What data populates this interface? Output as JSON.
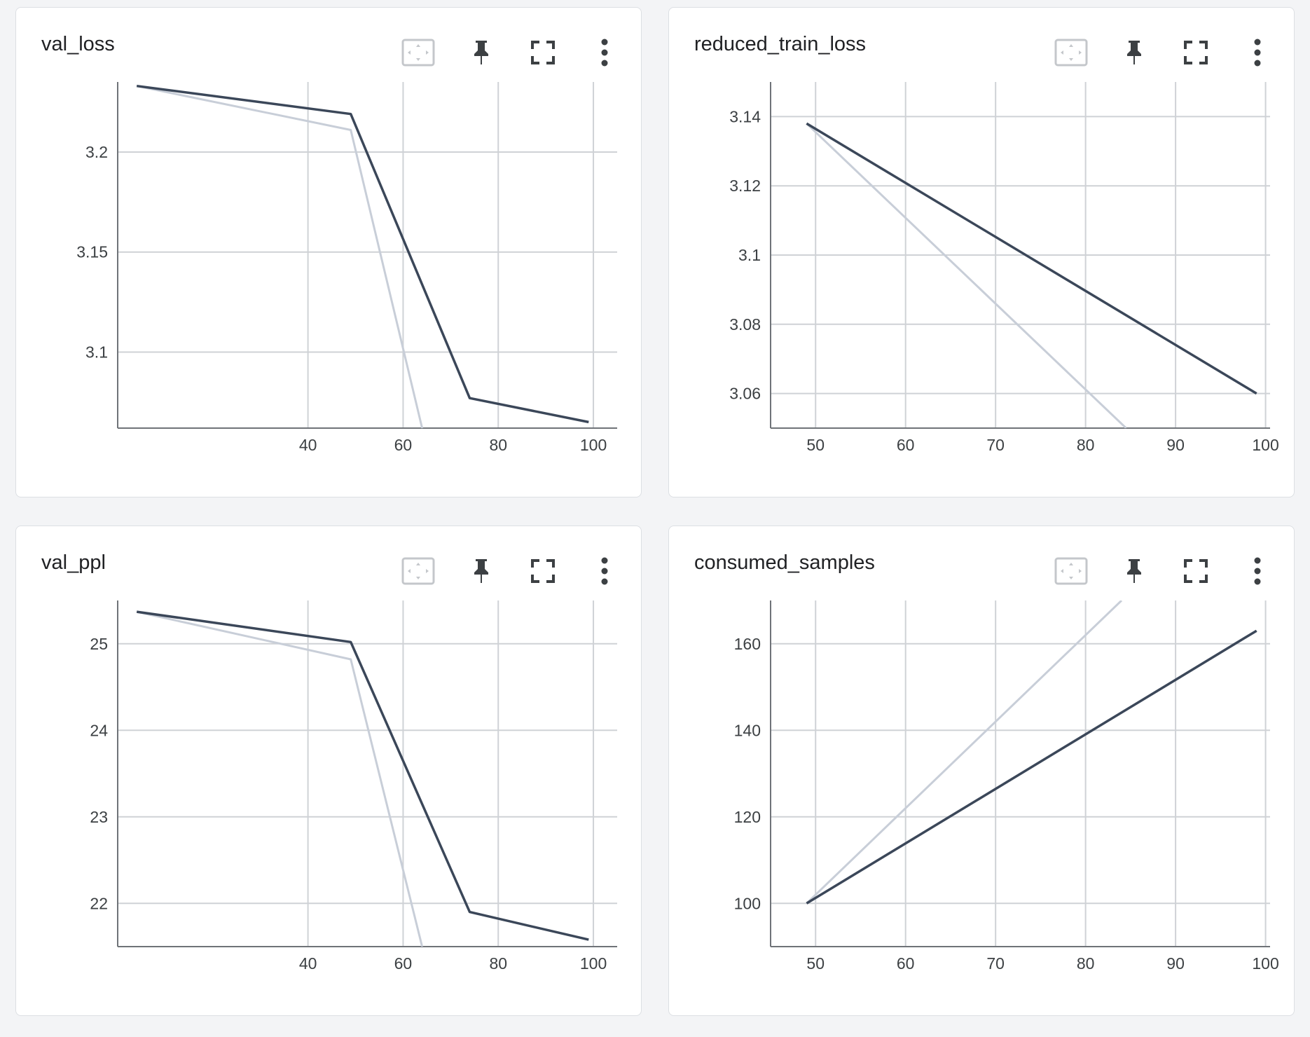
{
  "colors": {
    "smoothed": "#3b4759",
    "raw": "#c8ced8",
    "grid": "#cfd2d6",
    "axis": "#6f7378"
  },
  "icons": {
    "fit": "fit-to-data-icon",
    "pin": "pin-icon",
    "fullscreen": "fullscreen-icon",
    "more": "more-vert-icon"
  },
  "chart_data": [
    {
      "type": "line",
      "title": "val_loss",
      "xlim": [
        0,
        105
      ],
      "ylim": [
        3.062,
        3.235
      ],
      "xticks": [
        40,
        60,
        80,
        100
      ],
      "yticks": [
        3.1,
        3.15,
        3.2
      ],
      "ytick_labels": [
        "3.1",
        "3.15",
        "3.2"
      ],
      "series": [
        {
          "x": [
            4,
            49,
            74,
            99
          ],
          "y": [
            3.233,
            3.219,
            3.077,
            3.065
          ]
        },
        {
          "x": [
            4,
            49,
            64
          ],
          "y": [
            3.233,
            3.211,
            3.062
          ]
        }
      ]
    },
    {
      "type": "line",
      "title": "reduced_train_loss",
      "xlim": [
        45,
        100.5
      ],
      "ylim": [
        3.05,
        3.15
      ],
      "xticks": [
        50,
        60,
        70,
        80,
        90,
        100
      ],
      "yticks": [
        3.06,
        3.08,
        3.1,
        3.12,
        3.14
      ],
      "ytick_labels": [
        "3.06",
        "3.08",
        "3.1",
        "3.12",
        "3.14"
      ],
      "series": [
        {
          "x": [
            49,
            99
          ],
          "y": [
            3.138,
            3.06
          ]
        },
        {
          "x": [
            49,
            84.5
          ],
          "y": [
            3.138,
            3.05
          ]
        }
      ]
    },
    {
      "type": "line",
      "title": "val_ppl",
      "xlim": [
        0,
        105
      ],
      "ylim": [
        21.5,
        25.5
      ],
      "xticks": [
        40,
        60,
        80,
        100
      ],
      "yticks": [
        22,
        23,
        24,
        25
      ],
      "ytick_labels": [
        "22",
        "23",
        "24",
        "25"
      ],
      "series": [
        {
          "x": [
            4,
            49,
            74,
            99
          ],
          "y": [
            25.37,
            25.02,
            21.9,
            21.58
          ]
        },
        {
          "x": [
            4,
            49,
            64
          ],
          "y": [
            25.37,
            24.82,
            21.5
          ]
        }
      ]
    },
    {
      "type": "line",
      "title": "consumed_samples",
      "xlim": [
        45,
        100.5
      ],
      "ylim": [
        90,
        170
      ],
      "xticks": [
        50,
        60,
        70,
        80,
        90,
        100
      ],
      "yticks": [
        100,
        120,
        140,
        160
      ],
      "ytick_labels": [
        "100",
        "120",
        "140",
        "160"
      ],
      "series": [
        {
          "x": [
            49,
            99
          ],
          "y": [
            100,
            163
          ]
        },
        {
          "x": [
            49,
            84
          ],
          "y": [
            100,
            170
          ]
        }
      ]
    }
  ]
}
